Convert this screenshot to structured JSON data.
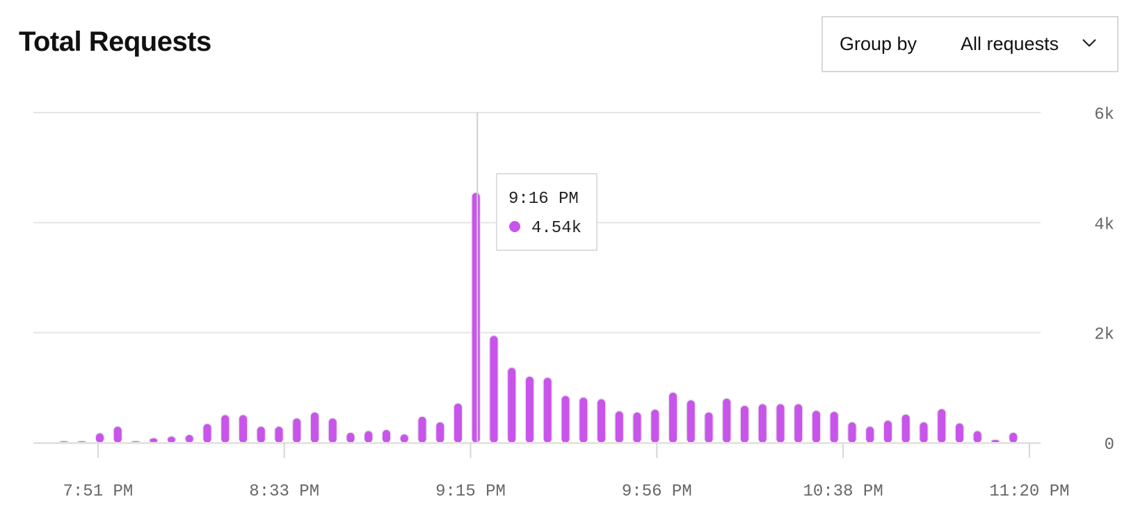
{
  "header": {
    "title": "Total Requests",
    "group_by_label": "Group by",
    "group_by_value": "All requests"
  },
  "colors": {
    "bar": "#c954ec",
    "grid": "#e4e4e4",
    "text_muted": "#666666",
    "tooltip_border": "#dddddd"
  },
  "tooltip": {
    "time": "9:16 PM",
    "value": "4.54k"
  },
  "chart_data": {
    "type": "bar",
    "title": "Total Requests",
    "xlabel": "",
    "ylabel": "",
    "ylim": [
      0,
      6000
    ],
    "y_ticks": [
      0,
      2000,
      4000,
      6000
    ],
    "y_tick_labels": [
      "0",
      "2k",
      "4k",
      "6k"
    ],
    "y_axis_position": "right",
    "grid": true,
    "x_tick_labels": [
      "7:51 PM",
      "8:33 PM",
      "9:15 PM",
      "9:56 PM",
      "10:38 PM",
      "11:20 PM"
    ],
    "x_tick_bar_index": [
      1.9,
      12.3,
      22.7,
      33.1,
      43.5,
      53.9
    ],
    "values": [
      10,
      10,
      170,
      290,
      20,
      80,
      110,
      140,
      340,
      500,
      500,
      290,
      290,
      440,
      550,
      440,
      180,
      210,
      230,
      150,
      470,
      370,
      710,
      4540,
      1940,
      1360,
      1200,
      1180,
      850,
      820,
      790,
      570,
      550,
      600,
      910,
      770,
      550,
      800,
      670,
      700,
      700,
      700,
      580,
      560,
      370,
      290,
      400,
      510,
      370,
      610,
      350,
      210,
      50,
      180
    ],
    "highlight_index": 23
  }
}
